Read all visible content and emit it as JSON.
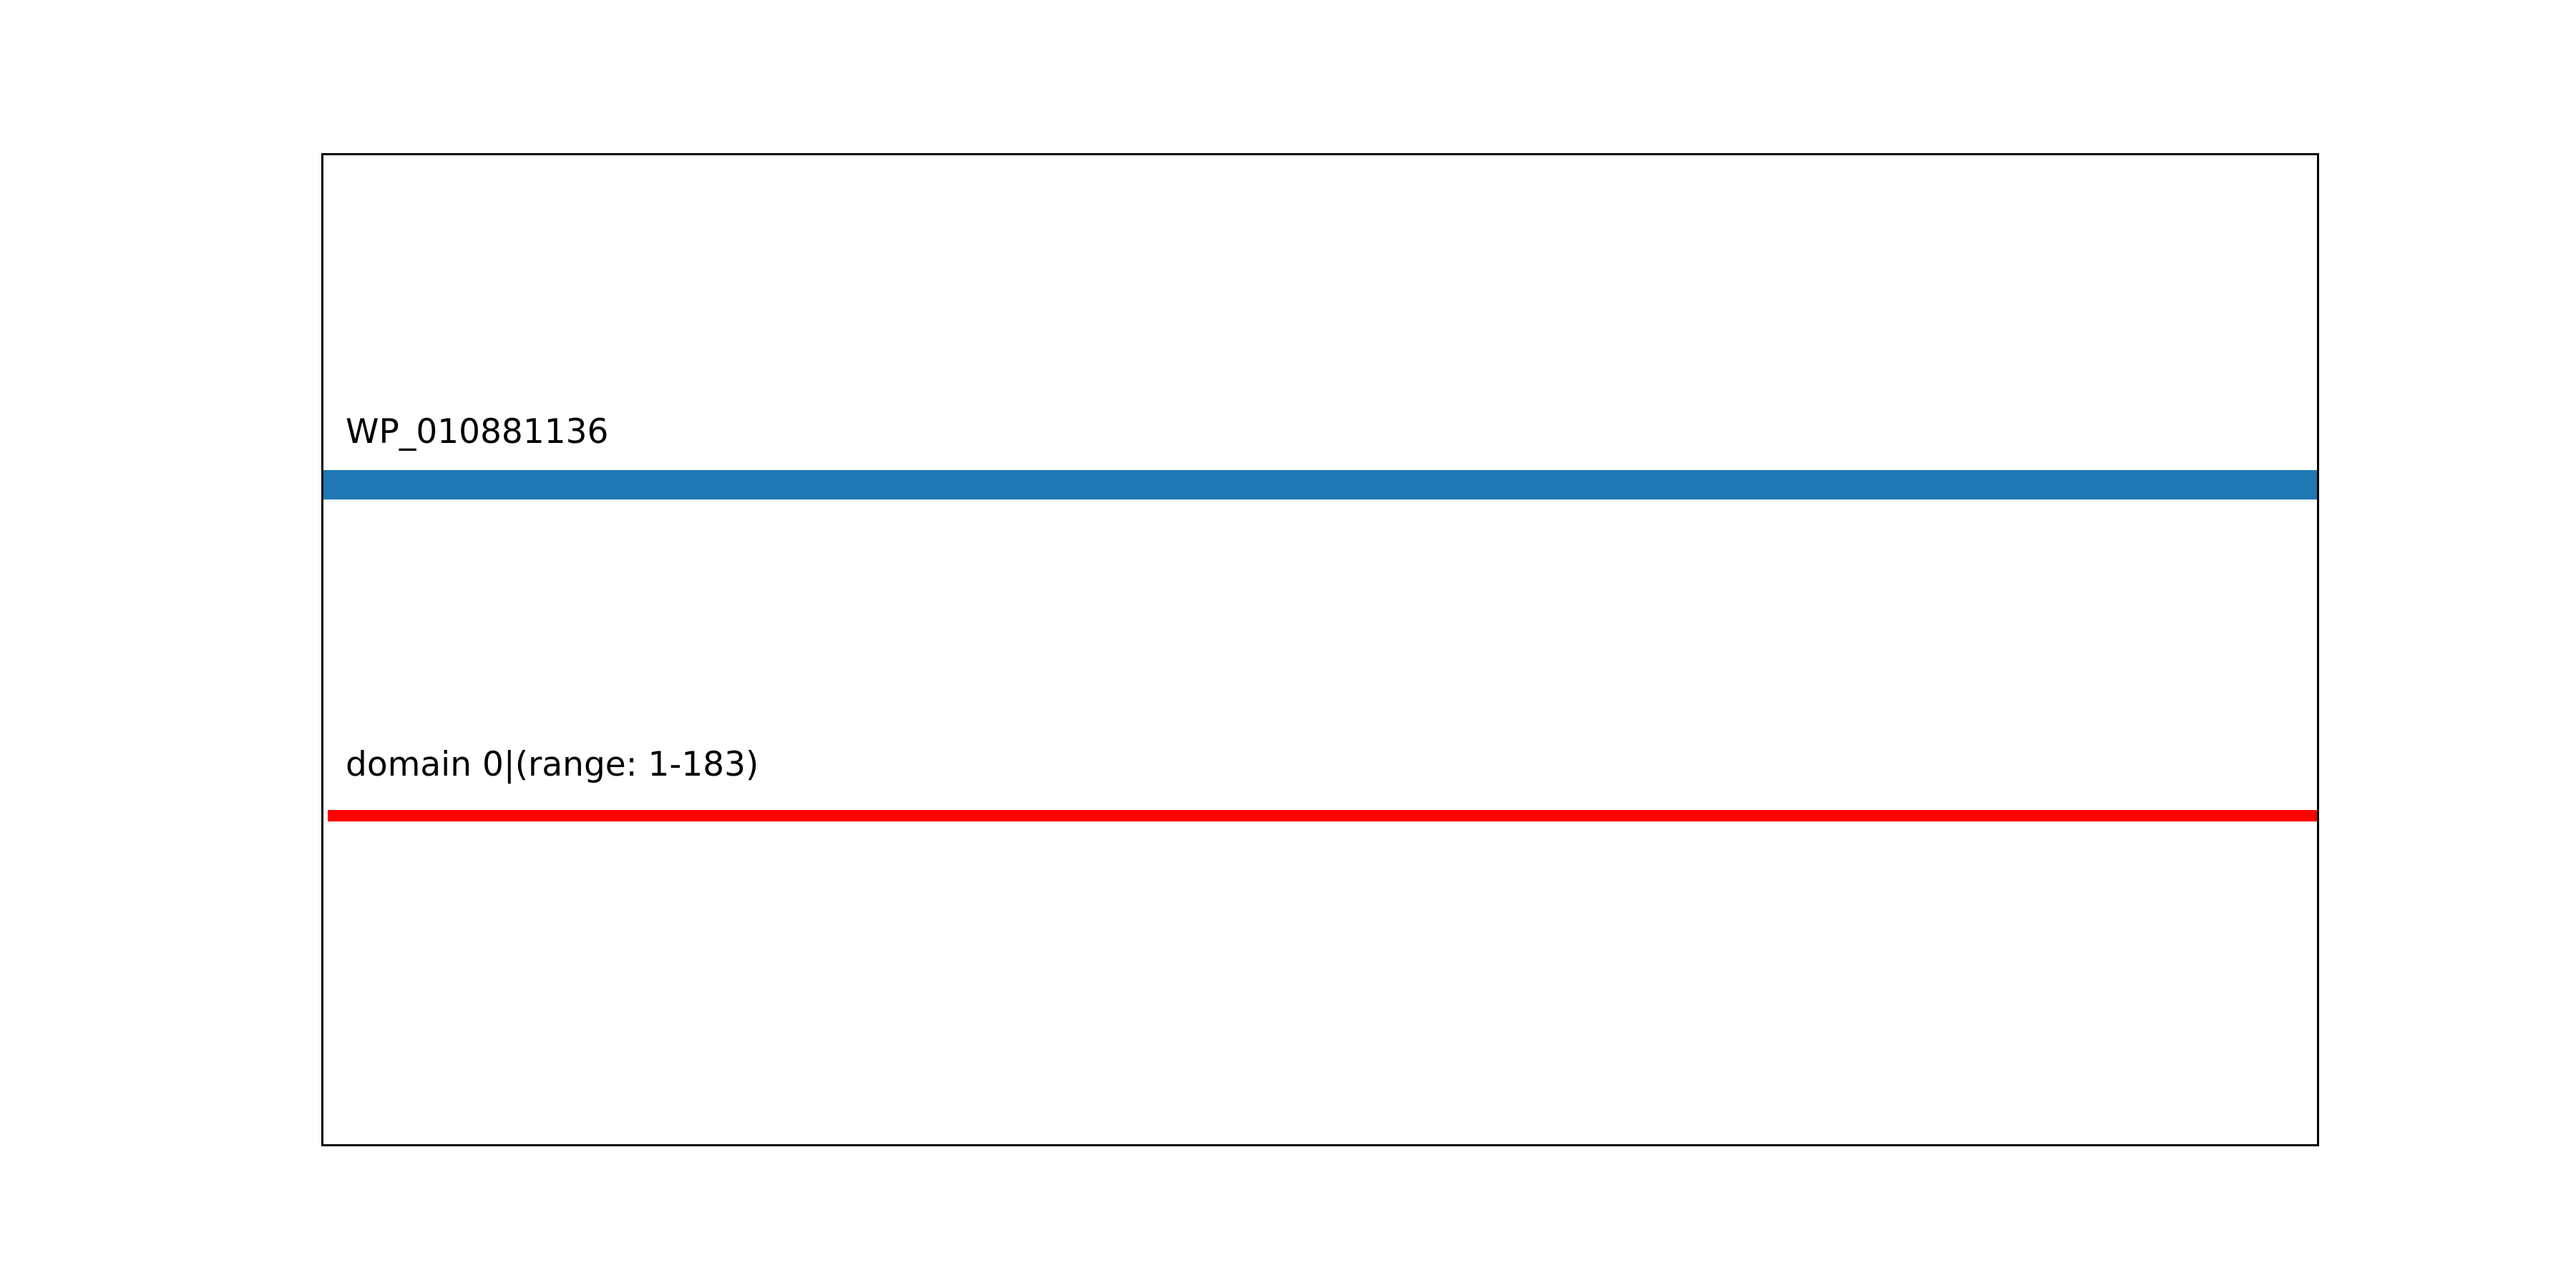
{
  "figure": {
    "background_color": "#ffffff",
    "frame_color": "#000000",
    "text_color": "#000000"
  },
  "chart_data": {
    "type": "bar",
    "subtype": "protein-domain-track-plot",
    "orientation": "horizontal",
    "title": "",
    "xlabel": "",
    "ylabel": "",
    "grid": false,
    "legend": false,
    "axis_ticks": false,
    "frame": true,
    "x_range": [
      0,
      183
    ],
    "tracks": [
      {
        "label": "WP_010881136",
        "role": "query-sequence",
        "start": 0,
        "end": 183,
        "color": "#1f77b4",
        "thickness": "thick"
      },
      {
        "label": "domain 0|(range: 1-183)",
        "role": "domain",
        "domain_index": 0,
        "start": 1,
        "end": 183,
        "color": "#ff0000",
        "thickness": "thin"
      }
    ]
  }
}
